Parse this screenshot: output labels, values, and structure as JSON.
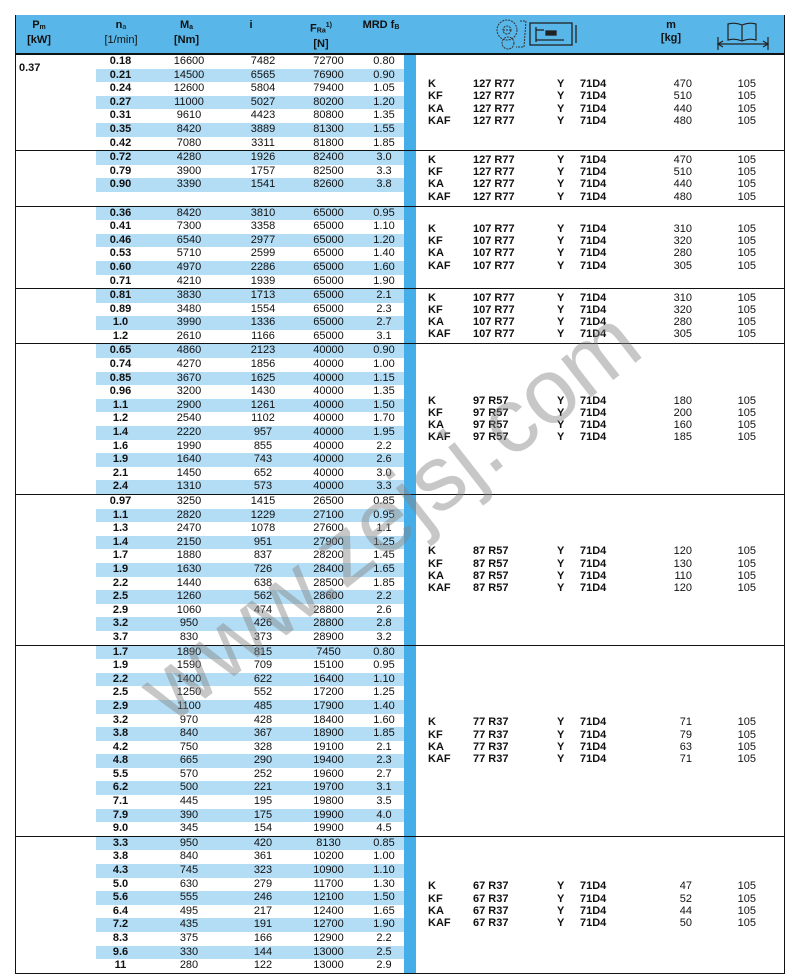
{
  "header": {
    "pm": "P",
    "pm_sub": "m",
    "pm_unit": "[kW]",
    "na": "n",
    "na_sub": "a",
    "na_unit": "[1/min]",
    "ma": "M",
    "ma_sub": "a",
    "ma_unit": "[Nm]",
    "i": "i",
    "fra": "F",
    "fra_sub": "Ra",
    "fra_sup": "1)",
    "fra_unit": "[N]",
    "mrd": "MRD f",
    "mrd_sub": "B",
    "m": "m",
    "m_unit": "[kg]",
    "icons": [
      "gearmotor-drawing-icon",
      "dimension-sheet-book-icon"
    ]
  },
  "colors": {
    "header": "#58b6e8",
    "stripe": "#45aee8",
    "shade": "#b3dcf5"
  },
  "power": "0.37",
  "watermark": "www.zejsj.com",
  "groups": [
    {
      "rows": [
        [
          "0.18",
          "16600",
          "7482",
          "72700",
          "0.80"
        ],
        [
          "0.21",
          "14500",
          "6565",
          "76900",
          "0.90"
        ],
        [
          "0.24",
          "12600",
          "5804",
          "79400",
          "1.05"
        ],
        [
          "0.27",
          "11000",
          "5027",
          "80200",
          "1.20"
        ],
        [
          "0.31",
          "9610",
          "4423",
          "80800",
          "1.35"
        ],
        [
          "0.35",
          "8420",
          "3889",
          "81300",
          "1.55"
        ],
        [
          "0.42",
          "7080",
          "3311",
          "81800",
          "1.85"
        ]
      ],
      "designations": [
        [
          "K",
          "127 R77",
          "Y",
          "71D4",
          "470",
          "105"
        ],
        [
          "KF",
          "127 R77",
          "Y",
          "71D4",
          "510",
          "105"
        ],
        [
          "KA",
          "127 R77",
          "Y",
          "71D4",
          "440",
          "105"
        ],
        [
          "KAF",
          "127 R77",
          "Y",
          "71D4",
          "480",
          "105"
        ]
      ]
    },
    {
      "rows": [
        [
          "0.72",
          "4280",
          "1926",
          "82400",
          "3.0"
        ],
        [
          "0.79",
          "3900",
          "1757",
          "82500",
          "3.3"
        ],
        [
          "0.90",
          "3390",
          "1541",
          "82600",
          "3.8"
        ],
        [
          "",
          "",
          "",
          "",
          ""
        ]
      ],
      "designations": [
        [
          "K",
          "127 R77",
          "Y",
          "71D4",
          "470",
          "105"
        ],
        [
          "KF",
          "127 R77",
          "Y",
          "71D4",
          "510",
          "105"
        ],
        [
          "KA",
          "127 R77",
          "Y",
          "71D4",
          "440",
          "105"
        ],
        [
          "KAF",
          "127 R77",
          "Y",
          "71D4",
          "480",
          "105"
        ]
      ]
    },
    {
      "rows": [
        [
          "0.36",
          "8420",
          "3810",
          "65000",
          "0.95"
        ],
        [
          "0.41",
          "7300",
          "3358",
          "65000",
          "1.10"
        ],
        [
          "0.46",
          "6540",
          "2977",
          "65000",
          "1.20"
        ],
        [
          "0.53",
          "5710",
          "2599",
          "65000",
          "1.40"
        ],
        [
          "0.60",
          "4970",
          "2286",
          "65000",
          "1.60"
        ],
        [
          "0.71",
          "4210",
          "1939",
          "65000",
          "1.90"
        ]
      ],
      "designations": [
        [
          "K",
          "107 R77",
          "Y",
          "71D4",
          "310",
          "105"
        ],
        [
          "KF",
          "107 R77",
          "Y",
          "71D4",
          "320",
          "105"
        ],
        [
          "KA",
          "107 R77",
          "Y",
          "71D4",
          "280",
          "105"
        ],
        [
          "KAF",
          "107 R77",
          "Y",
          "71D4",
          "305",
          "105"
        ]
      ]
    },
    {
      "rows": [
        [
          "0.81",
          "3830",
          "1713",
          "65000",
          "2.1"
        ],
        [
          "0.89",
          "3480",
          "1554",
          "65000",
          "2.3"
        ],
        [
          "1.0",
          "3990",
          "1336",
          "65000",
          "2.7"
        ],
        [
          "1.2",
          "2610",
          "1166",
          "65000",
          "3.1"
        ]
      ],
      "designations": [
        [
          "K",
          "107 R77",
          "Y",
          "71D4",
          "310",
          "105"
        ],
        [
          "KF",
          "107 R77",
          "Y",
          "71D4",
          "320",
          "105"
        ],
        [
          "KA",
          "107 R77",
          "Y",
          "71D4",
          "280",
          "105"
        ],
        [
          "KAF",
          "107 R77",
          "Y",
          "71D4",
          "305",
          "105"
        ]
      ]
    },
    {
      "rows": [
        [
          "0.65",
          "4860",
          "2123",
          "40000",
          "0.90"
        ],
        [
          "0.74",
          "4270",
          "1856",
          "40000",
          "1.00"
        ],
        [
          "0.85",
          "3670",
          "1625",
          "40000",
          "1.15"
        ],
        [
          "0.96",
          "3200",
          "1430",
          "40000",
          "1.35"
        ],
        [
          "1.1",
          "2900",
          "1261",
          "40000",
          "1.50"
        ],
        [
          "1.2",
          "2540",
          "1102",
          "40000",
          "1.70"
        ],
        [
          "1.4",
          "2220",
          "957",
          "40000",
          "1.95"
        ],
        [
          "1.6",
          "1990",
          "855",
          "40000",
          "2.2"
        ],
        [
          "1.9",
          "1640",
          "743",
          "40000",
          "2.6"
        ],
        [
          "2.1",
          "1450",
          "652",
          "40000",
          "3.0"
        ],
        [
          "2.4",
          "1310",
          "573",
          "40000",
          "3.3"
        ]
      ],
      "designations": [
        [
          "K",
          "97 R57",
          "Y",
          "71D4",
          "180",
          "105"
        ],
        [
          "KF",
          "97 R57",
          "Y",
          "71D4",
          "200",
          "105"
        ],
        [
          "KA",
          "97 R57",
          "Y",
          "71D4",
          "160",
          "105"
        ],
        [
          "KAF",
          "97 R57",
          "Y",
          "71D4",
          "185",
          "105"
        ]
      ]
    },
    {
      "rows": [
        [
          "0.97",
          "3250",
          "1415",
          "26500",
          "0.85"
        ],
        [
          "1.1",
          "2820",
          "1229",
          "27100",
          "0.95"
        ],
        [
          "1.3",
          "2470",
          "1078",
          "27600",
          "1.1"
        ],
        [
          "1.4",
          "2150",
          "951",
          "27900",
          "1.25"
        ],
        [
          "1.7",
          "1880",
          "837",
          "28200",
          "1.45"
        ],
        [
          "1.9",
          "1630",
          "726",
          "28400",
          "1.65"
        ],
        [
          "2.2",
          "1440",
          "638",
          "28500",
          "1.85"
        ],
        [
          "2.5",
          "1260",
          "562",
          "28600",
          "2.2"
        ],
        [
          "2.9",
          "1060",
          "474",
          "28800",
          "2.6"
        ],
        [
          "3.2",
          "950",
          "426",
          "28800",
          "2.8"
        ],
        [
          "3.7",
          "830",
          "373",
          "28900",
          "3.2"
        ]
      ],
      "designations": [
        [
          "K",
          "87 R57",
          "Y",
          "71D4",
          "120",
          "105"
        ],
        [
          "KF",
          "87 R57",
          "Y",
          "71D4",
          "130",
          "105"
        ],
        [
          "KA",
          "87 R57",
          "Y",
          "71D4",
          "110",
          "105"
        ],
        [
          "KAF",
          "87 R57",
          "Y",
          "71D4",
          "120",
          "105"
        ]
      ]
    },
    {
      "rows": [
        [
          "1.7",
          "1890",
          "815",
          "7450",
          "0.80"
        ],
        [
          "1.9",
          "1590",
          "709",
          "15100",
          "0.95"
        ],
        [
          "2.2",
          "1400",
          "622",
          "16400",
          "1.10"
        ],
        [
          "2.5",
          "1250",
          "552",
          "17200",
          "1.25"
        ],
        [
          "2.9",
          "1100",
          "485",
          "17900",
          "1.40"
        ],
        [
          "3.2",
          "970",
          "428",
          "18400",
          "1.60"
        ],
        [
          "3.8",
          "840",
          "367",
          "18900",
          "1.85"
        ],
        [
          "4.2",
          "750",
          "328",
          "19100",
          "2.1"
        ],
        [
          "4.8",
          "665",
          "290",
          "19400",
          "2.3"
        ],
        [
          "5.5",
          "570",
          "252",
          "19600",
          "2.7"
        ],
        [
          "6.2",
          "500",
          "221",
          "19700",
          "3.1"
        ],
        [
          "7.1",
          "445",
          "195",
          "19800",
          "3.5"
        ],
        [
          "7.9",
          "390",
          "175",
          "19900",
          "4.0"
        ],
        [
          "9.0",
          "345",
          "154",
          "19900",
          "4.5"
        ]
      ],
      "designations": [
        [
          "K",
          "77 R37",
          "Y",
          "71D4",
          "71",
          "105"
        ],
        [
          "KF",
          "77 R37",
          "Y",
          "71D4",
          "79",
          "105"
        ],
        [
          "KA",
          "77 R37",
          "Y",
          "71D4",
          "63",
          "105"
        ],
        [
          "KAF",
          "77 R37",
          "Y",
          "71D4",
          "71",
          "105"
        ]
      ]
    },
    {
      "rows": [
        [
          "3.3",
          "950",
          "420",
          "8130",
          "0.85"
        ],
        [
          "3.8",
          "840",
          "361",
          "10200",
          "1.00"
        ],
        [
          "4.3",
          "745",
          "323",
          "10900",
          "1.10"
        ],
        [
          "5.0",
          "630",
          "279",
          "11700",
          "1.30"
        ],
        [
          "5.6",
          "555",
          "246",
          "12100",
          "1.50"
        ],
        [
          "6.4",
          "495",
          "217",
          "12400",
          "1.65"
        ],
        [
          "7.2",
          "435",
          "191",
          "12700",
          "1.90"
        ],
        [
          "8.3",
          "375",
          "166",
          "12900",
          "2.2"
        ],
        [
          "9.6",
          "330",
          "144",
          "13000",
          "2.5"
        ],
        [
          "11",
          "280",
          "122",
          "13000",
          "2.9"
        ]
      ],
      "designations": [
        [
          "K",
          "67 R37",
          "Y",
          "71D4",
          "47",
          "105"
        ],
        [
          "KF",
          "67 R37",
          "Y",
          "71D4",
          "52",
          "105"
        ],
        [
          "KA",
          "67 R37",
          "Y",
          "71D4",
          "44",
          "105"
        ],
        [
          "KAF",
          "67 R37",
          "Y",
          "71D4",
          "50",
          "105"
        ]
      ]
    }
  ]
}
